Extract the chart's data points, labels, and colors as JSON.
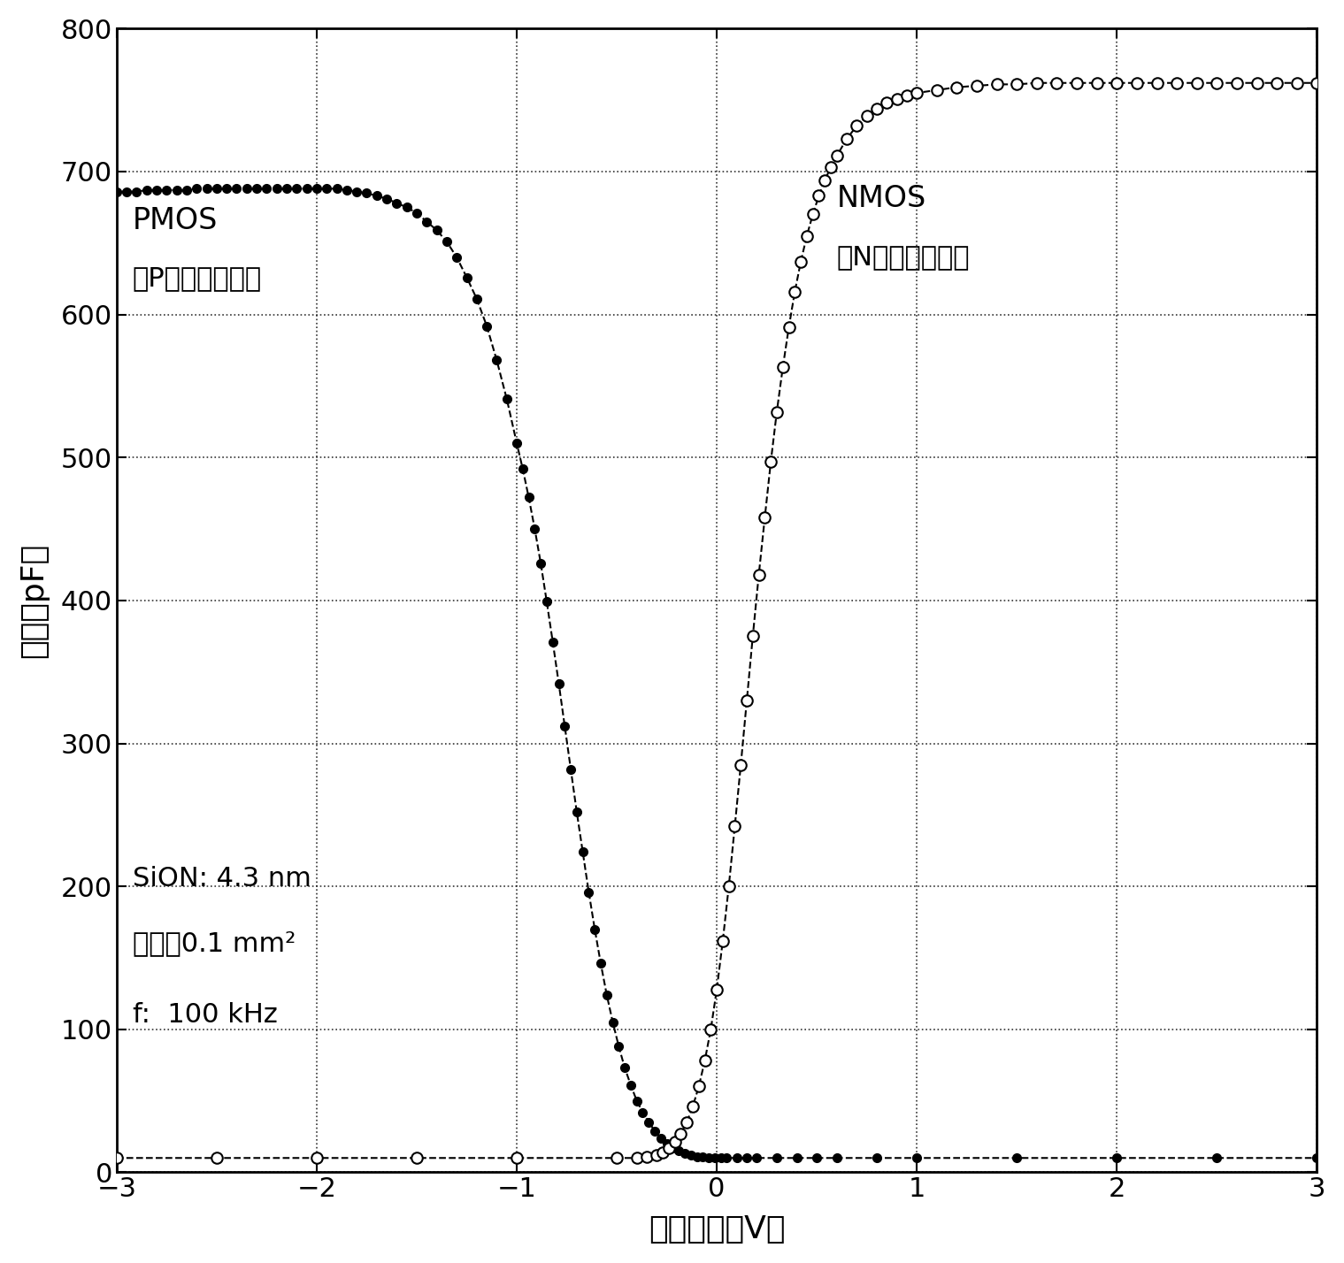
{
  "xlabel": "栏极电压（V）",
  "ylabel": "电容（pF）",
  "xlim": [
    -3,
    3
  ],
  "ylim": [
    0,
    800
  ],
  "xticks": [
    -3,
    -2,
    -1,
    0,
    1,
    2,
    3
  ],
  "yticks": [
    0,
    100,
    200,
    300,
    400,
    500,
    600,
    700,
    800
  ],
  "background_color": "#ffffff",
  "annotation_sion": "SiON: 4.3 nm",
  "annotation_area": "面积：0.1 mm²",
  "annotation_freq": "f:  100 kHz",
  "label_pmos": "PMOS",
  "label_pmos2": "（P－型衬底　）",
  "label_nmos": "NMOS",
  "label_nmos2": "（N－型衬底　）",
  "pmos_x": [
    -3.0,
    -2.95,
    -2.9,
    -2.85,
    -2.8,
    -2.75,
    -2.7,
    -2.65,
    -2.6,
    -2.55,
    -2.5,
    -2.45,
    -2.4,
    -2.35,
    -2.3,
    -2.25,
    -2.2,
    -2.15,
    -2.1,
    -2.05,
    -2.0,
    -1.95,
    -1.9,
    -1.85,
    -1.8,
    -1.75,
    -1.7,
    -1.65,
    -1.6,
    -1.55,
    -1.5,
    -1.45,
    -1.4,
    -1.35,
    -1.3,
    -1.25,
    -1.2,
    -1.15,
    -1.1,
    -1.05,
    -1.0,
    -0.97,
    -0.94,
    -0.91,
    -0.88,
    -0.85,
    -0.82,
    -0.79,
    -0.76,
    -0.73,
    -0.7,
    -0.67,
    -0.64,
    -0.61,
    -0.58,
    -0.55,
    -0.52,
    -0.49,
    -0.46,
    -0.43,
    -0.4,
    -0.37,
    -0.34,
    -0.31,
    -0.28,
    -0.25,
    -0.22,
    -0.19,
    -0.16,
    -0.13,
    -0.1,
    -0.07,
    -0.04,
    -0.01,
    0.02,
    0.05,
    0.1,
    0.15,
    0.2,
    0.3,
    0.4,
    0.5,
    0.6,
    0.8,
    1.0,
    1.5,
    2.0,
    2.5,
    3.0
  ],
  "pmos_y": [
    686,
    686,
    686,
    687,
    687,
    687,
    687,
    687,
    688,
    688,
    688,
    688,
    688,
    688,
    688,
    688,
    688,
    688,
    688,
    688,
    688,
    688,
    688,
    687,
    686,
    685,
    683,
    681,
    678,
    675,
    671,
    665,
    659,
    651,
    640,
    626,
    611,
    592,
    568,
    541,
    510,
    492,
    472,
    450,
    426,
    399,
    371,
    342,
    312,
    282,
    252,
    224,
    196,
    170,
    146,
    124,
    105,
    88,
    73,
    61,
    50,
    42,
    35,
    29,
    24,
    20,
    17,
    15,
    13,
    12,
    11,
    11,
    10,
    10,
    10,
    10,
    10,
    10,
    10,
    10,
    10,
    10,
    10,
    10,
    10,
    10,
    10,
    10,
    10
  ],
  "nmos_x": [
    -3.0,
    -2.5,
    -2.0,
    -1.5,
    -1.0,
    -0.5,
    -0.4,
    -0.35,
    -0.3,
    -0.27,
    -0.24,
    -0.21,
    -0.18,
    -0.15,
    -0.12,
    -0.09,
    -0.06,
    -0.03,
    0.0,
    0.03,
    0.06,
    0.09,
    0.12,
    0.15,
    0.18,
    0.21,
    0.24,
    0.27,
    0.3,
    0.33,
    0.36,
    0.39,
    0.42,
    0.45,
    0.48,
    0.51,
    0.54,
    0.57,
    0.6,
    0.65,
    0.7,
    0.75,
    0.8,
    0.85,
    0.9,
    0.95,
    1.0,
    1.1,
    1.2,
    1.3,
    1.4,
    1.5,
    1.6,
    1.7,
    1.8,
    1.9,
    2.0,
    2.1,
    2.2,
    2.3,
    2.4,
    2.5,
    2.6,
    2.7,
    2.8,
    2.9,
    3.0
  ],
  "nmos_y": [
    10,
    10,
    10,
    10,
    10,
    10,
    10,
    11,
    12,
    14,
    17,
    21,
    27,
    35,
    46,
    60,
    78,
    100,
    128,
    162,
    200,
    242,
    285,
    330,
    375,
    418,
    458,
    497,
    532,
    563,
    591,
    616,
    637,
    655,
    670,
    683,
    694,
    703,
    711,
    723,
    732,
    739,
    744,
    748,
    751,
    753,
    755,
    757,
    759,
    760,
    761,
    761,
    762,
    762,
    762,
    762,
    762,
    762,
    762,
    762,
    762,
    762,
    762,
    762,
    762,
    762,
    762
  ]
}
